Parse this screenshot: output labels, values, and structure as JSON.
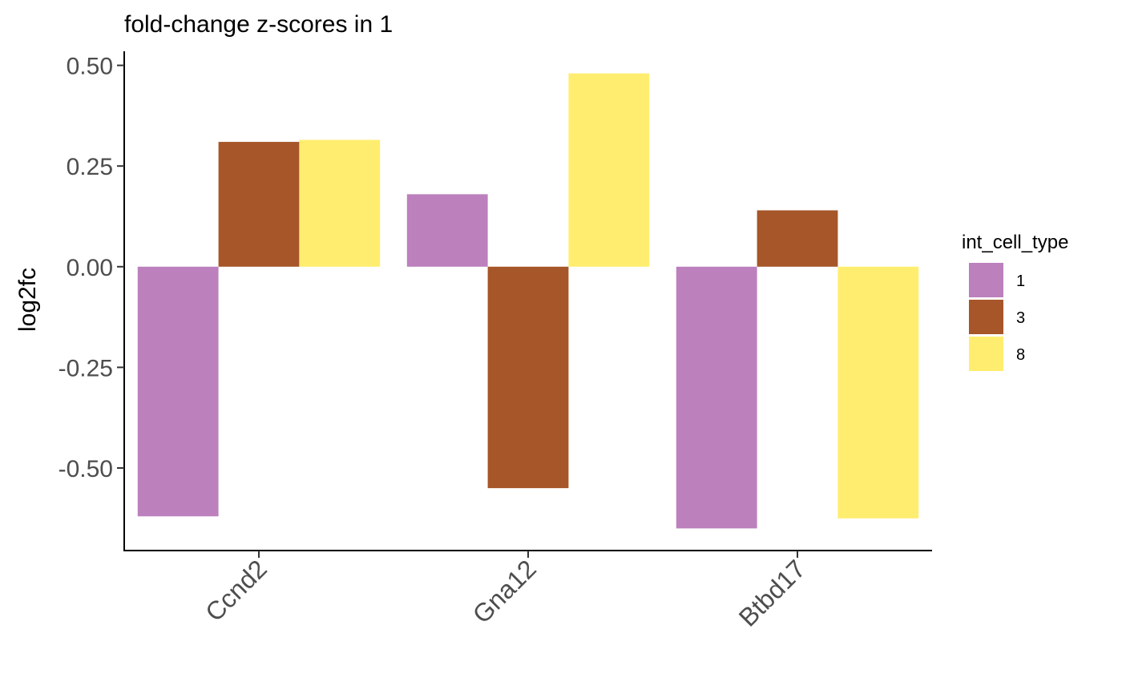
{
  "chart_data": {
    "type": "bar",
    "title": "fold-change z-scores in 1",
    "xlabel": "",
    "ylabel": "log2fc",
    "categories": [
      "Ccnd2",
      "Gna12",
      "Btbd17"
    ],
    "series": [
      {
        "name": "1",
        "color": "#BC80BD",
        "values": [
          -0.62,
          0.18,
          -0.65
        ]
      },
      {
        "name": "3",
        "color": "#A65628",
        "values": [
          0.31,
          -0.55,
          0.14
        ]
      },
      {
        "name": "8",
        "color": "#FFED6F",
        "values": [
          0.315,
          0.48,
          -0.625
        ]
      }
    ],
    "ylim": [
      -0.705,
      0.535
    ],
    "yticks": [
      0.5,
      0.25,
      0.0,
      -0.25,
      -0.5
    ],
    "ytick_labels": [
      "0.50",
      "0.25",
      "0.00",
      "-0.25",
      "-0.50"
    ],
    "grid": false,
    "legend": {
      "title": "int_cell_type",
      "position": "right"
    }
  }
}
